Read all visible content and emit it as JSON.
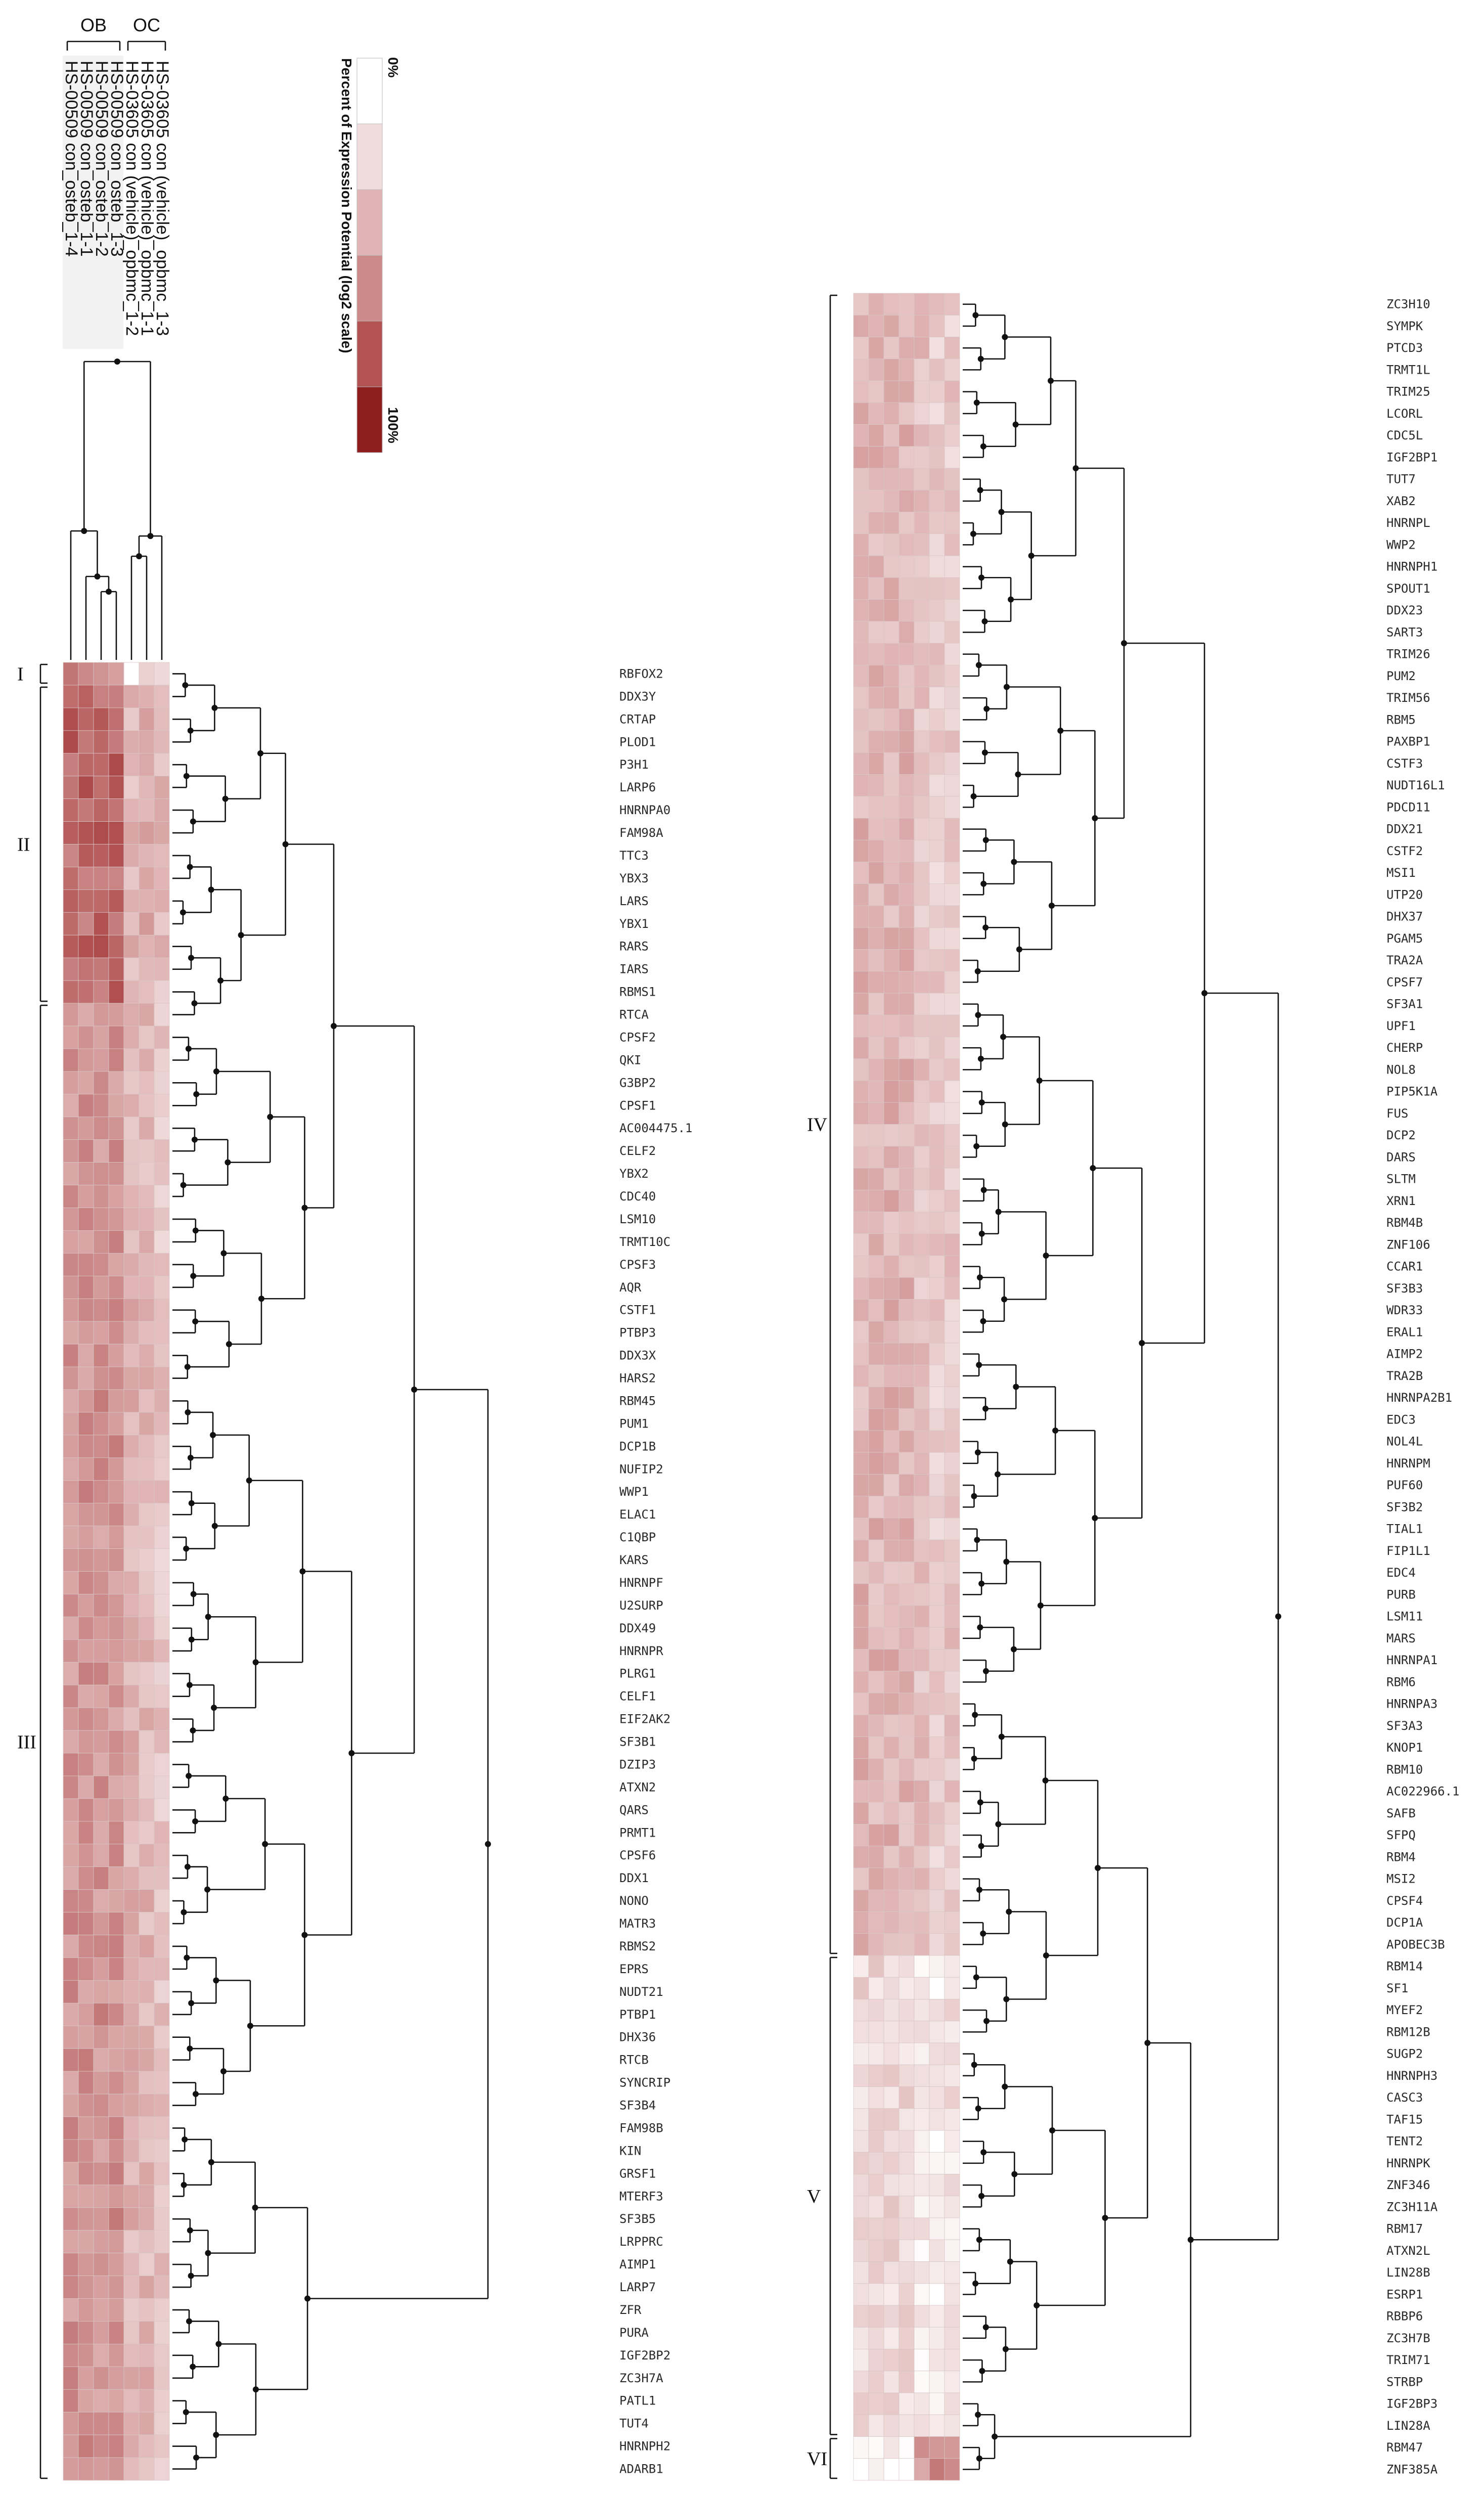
{
  "chart_data": {
    "type": "heatmap",
    "title": "",
    "legend": {
      "title": "Percent of Expression Potential (log2 scale)",
      "min_label": "0%",
      "max_label": "100%",
      "colors": [
        "#ffffff",
        "#f0dcdc",
        "#e0b4b4",
        "#cc8a8a",
        "#b25252",
        "#8e1e1e"
      ]
    },
    "column_groups": [
      {
        "label": "OB",
        "columns": [
          0,
          1,
          2,
          3
        ]
      },
      {
        "label": "OC",
        "columns": [
          4,
          5,
          6
        ]
      }
    ],
    "columns": [
      "HS-00509 con_osteb_1-4",
      "HS-00509 con_osteb_1-1",
      "HS-00509 con_osteb_1-2",
      "HS-00509 con_osteb_1-3",
      "HS-03605 con (vehicle)_opbmc_1-2",
      "HS-03605 con (vehicle)_opbmc_1-1",
      "HS-03605 con (vehicle)_opbmc_1-3"
    ],
    "clusters": [
      {
        "label": "I",
        "genes": [
          "RBFOX2"
        ]
      },
      {
        "label": "II",
        "genes": [
          "DDX3Y",
          "CRTAP",
          "PLOD1",
          "P3H1",
          "LARP6",
          "HNRNPA0",
          "FAM98A",
          "TTC3",
          "YBX3",
          "LARS",
          "YBX1",
          "RARS",
          "IARS",
          "RBMS1"
        ]
      },
      {
        "label": "III",
        "genes": [
          "RTCA",
          "CPSF2",
          "QKI",
          "G3BP2",
          "CPSF1",
          "AC004475.1",
          "CELF2",
          "YBX2",
          "CDC40",
          "LSM10",
          "TRMT10C",
          "CPSF3",
          "AQR",
          "CSTF1",
          "PTBP3",
          "DDX3X",
          "HARS2",
          "RBM45",
          "PUM1",
          "DCP1B",
          "NUFIP2",
          "WWP1",
          "ELAC1",
          "C1QBP",
          "KARS",
          "HNRNPF",
          "U2SURP",
          "DDX49",
          "HNRNPR",
          "PLRG1",
          "CELF1",
          "EIF2AK2",
          "SF3B1",
          "DZIP3",
          "ATXN2",
          "QARS",
          "PRMT1",
          "CPSF6",
          "DDX1",
          "NONO",
          "MATR3",
          "RBMS2",
          "EPRS",
          "NUDT21",
          "PTBP1",
          "DHX36",
          "RTCB",
          "SYNCRIP",
          "SF3B4",
          "FAM98B",
          "KIN",
          "GRSF1",
          "MTERF3",
          "SF3B5",
          "LRPPRC",
          "AIMP1",
          "LARP7",
          "ZFR",
          "PURA",
          "IGF2BP2",
          "ZC3H7A",
          "PATL1",
          "TUT4",
          "HNRNPH2",
          "ADARB1"
        ]
      },
      {
        "label": "IV",
        "genes": [
          "ZC3H10",
          "SYMPK",
          "PTCD3",
          "TRMT1L",
          "TRIM25",
          "LCORL",
          "CDC5L",
          "IGF2BP1",
          "TUT7",
          "XAB2",
          "HNRNPL",
          "WWP2",
          "HNRNPH1",
          "SPOUT1",
          "DDX23",
          "SART3",
          "TRIM26",
          "PUM2",
          "TRIM56",
          "RBM5",
          "PAXBP1",
          "CSTF3",
          "NUDT16L1",
          "PDCD11",
          "DDX21",
          "CSTF2",
          "MSI1",
          "UTP20",
          "DHX37",
          "PGAM5",
          "TRA2A",
          "CPSF7",
          "SF3A1",
          "UPF1",
          "CHERP",
          "NOL8",
          "PIP5K1A",
          "FUS",
          "DCP2",
          "DARS",
          "SLTM",
          "XRN1",
          "RBM4B",
          "ZNF106",
          "CCAR1",
          "SF3B3",
          "WDR33",
          "ERAL1",
          "AIMP2",
          "TRA2B",
          "HNRNPA2B1",
          "EDC3",
          "NOL4L",
          "HNRNPM",
          "PUF60",
          "SF3B2",
          "TIAL1",
          "FIP1L1",
          "EDC4",
          "PURB",
          "LSM11",
          "MARS",
          "HNRNPA1",
          "RBM6",
          "HNRNPA3",
          "SF3A3",
          "KNOP1",
          "RBM10",
          "AC022966.1",
          "SAFB",
          "SFPQ",
          "RBM4",
          "MSI2",
          "CPSF4",
          "DCP1A",
          "APOBEC3B"
        ]
      },
      {
        "label": "V",
        "genes": [
          "RBM14",
          "SF1",
          "MYEF2",
          "RBM12B",
          "SUGP2",
          "HNRNPH3",
          "CASC3",
          "TAF15",
          "TENT2",
          "HNRNPK",
          "ZNF346",
          "ZC3H11A",
          "RBM17",
          "ATXN2L",
          "LIN28B",
          "ESRP1",
          "RBBP6",
          "ZC3H7B",
          "TRIM71",
          "STRBP",
          "IGF2BP3",
          "LIN28A"
        ]
      },
      {
        "label": "VI",
        "genes": [
          "RBM47",
          "ZNF385A"
        ]
      }
    ]
  }
}
